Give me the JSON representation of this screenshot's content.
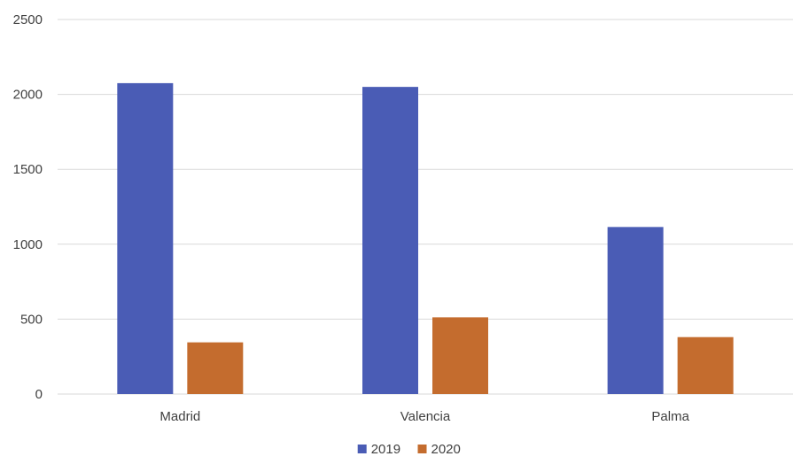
{
  "chart_data": {
    "type": "bar",
    "categories": [
      "Madrid",
      "Valencia",
      "Palma"
    ],
    "series": [
      {
        "name": "2019",
        "values": [
          2075,
          2050,
          1115
        ],
        "color": "#4A5CB5"
      },
      {
        "name": "2020",
        "values": [
          345,
          512,
          380
        ],
        "color": "#C46C2E"
      }
    ],
    "ylim": [
      0,
      2500
    ],
    "yticks": [
      0,
      500,
      1000,
      1500,
      2000,
      2500
    ],
    "grid": true,
    "legend": "bottom-center",
    "title": "",
    "xlabel": "",
    "ylabel": ""
  }
}
